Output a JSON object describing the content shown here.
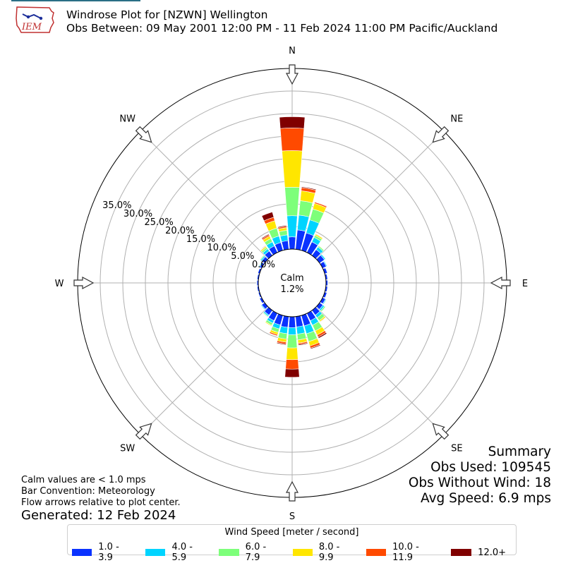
{
  "header": {
    "title_line1": "Windrose Plot for [NZWN] Wellington",
    "title_line2": "Obs Between: 09 May 2001 12:00 PM - 11 Feb 2024 11:00 PM Pacific/Auckland",
    "logo_text": "IEM"
  },
  "summary": {
    "heading": "Summary",
    "obs_used": "Obs Used: 109545",
    "obs_without_wind": "Obs Without Wind: 18",
    "avg_speed": "Avg Speed: 6.9 mps"
  },
  "notes": {
    "calm_note": "Calm values are < 1.0 mps",
    "bar_convention": "Bar Convention: Meteorology",
    "flow_arrows": "Flow arrows relative to plot center.",
    "generated": "Generated: 12 Feb 2024"
  },
  "chart_data": {
    "type": "windrose",
    "calm_label": "Calm",
    "calm_value": "1.2%",
    "radial_ticks": [
      "0.0%",
      "5.0%",
      "10.0%",
      "15.0%",
      "20.0%",
      "25.0%",
      "30.0%",
      "35.0%"
    ],
    "radial_tick_values": [
      0,
      5,
      10,
      15,
      20,
      25,
      30,
      35
    ],
    "rmax": 40,
    "compass_labels": [
      "N",
      "NE",
      "E",
      "SE",
      "S",
      "SW",
      "W",
      "NW"
    ],
    "grid": true,
    "legend": {
      "title": "Wind Speed [meter / second]",
      "placement": "bottom-center",
      "entries": [
        "1.0 - 3.9",
        "4.0 - 5.9",
        "6.0 - 7.9",
        "8.0 - 9.9",
        "10.0 - 11.9",
        "12.0+"
      ],
      "colors": [
        "#0a32ff",
        "#00d4ff",
        "#7dff7a",
        "#ffe600",
        "#ff4a00",
        "#800000"
      ]
    },
    "directions": [
      0,
      10,
      20,
      30,
      40,
      50,
      60,
      70,
      80,
      90,
      100,
      110,
      120,
      130,
      140,
      150,
      160,
      170,
      180,
      190,
      200,
      210,
      220,
      230,
      240,
      250,
      260,
      270,
      280,
      290,
      300,
      310,
      320,
      330,
      340,
      350
    ],
    "series": [
      {
        "name": "1.0 - 3.9",
        "values": [
          2.7,
          4.3,
          4.0,
          2.6,
          1.6,
          1.3,
          0.9,
          0.6,
          0.4,
          0.4,
          0.4,
          0.5,
          0.7,
          0.9,
          1.3,
          1.8,
          2.4,
          2.3,
          2.4,
          2.4,
          2.2,
          1.8,
          1.3,
          0.8,
          0.5,
          0.3,
          0.3,
          0.3,
          0.3,
          0.4,
          0.5,
          0.8,
          1.2,
          1.6,
          1.8,
          1.9
        ]
      },
      {
        "name": "4.0 - 5.9",
        "values": [
          4.7,
          3.3,
          3.0,
          1.1,
          0.7,
          0.3,
          0.2,
          0.1,
          0.1,
          0.1,
          0.1,
          0.1,
          0.2,
          0.4,
          0.7,
          1.1,
          1.8,
          1.6,
          1.6,
          1.4,
          0.9,
          0.6,
          0.3,
          0.2,
          0.1,
          0.1,
          0.1,
          0.1,
          0.1,
          0.1,
          0.2,
          0.3,
          0.6,
          1.0,
          1.5,
          1.3
        ]
      },
      {
        "name": "6.0 - 7.9",
        "values": [
          6.3,
          3.2,
          2.5,
          0.5,
          0.3,
          0.1,
          0.1,
          0.1,
          0.0,
          0.0,
          0.0,
          0.1,
          0.1,
          0.3,
          0.8,
          1.4,
          1.8,
          1.3,
          2.9,
          1.2,
          0.8,
          0.5,
          0.2,
          0.1,
          0.1,
          0.0,
          0.0,
          0.0,
          0.0,
          0.1,
          0.1,
          0.2,
          0.4,
          0.8,
          1.8,
          1.0
        ]
      },
      {
        "name": "8.0 - 9.9",
        "values": [
          8.1,
          2.2,
          1.3,
          0.3,
          0.1,
          0.1,
          0.0,
          0.0,
          0.0,
          0.0,
          0.0,
          0.0,
          0.1,
          0.1,
          0.3,
          1.0,
          1.0,
          0.7,
          2.6,
          0.7,
          0.5,
          0.2,
          0.1,
          0.0,
          0.0,
          0.0,
          0.0,
          0.0,
          0.0,
          0.0,
          0.0,
          0.1,
          0.3,
          0.6,
          1.7,
          0.6
        ]
      },
      {
        "name": "10.0 - 11.9",
        "values": [
          5.0,
          0.7,
          0.3,
          0.1,
          0.0,
          0.0,
          0.0,
          0.0,
          0.0,
          0.0,
          0.0,
          0.0,
          0.0,
          0.0,
          0.1,
          0.5,
          0.5,
          0.3,
          2.1,
          0.4,
          0.3,
          0.1,
          0.0,
          0.0,
          0.0,
          0.0,
          0.0,
          0.0,
          0.0,
          0.0,
          0.0,
          0.0,
          0.1,
          0.3,
          0.8,
          0.3
        ]
      },
      {
        "name": "12.0+",
        "values": [
          2.5,
          0.2,
          0.1,
          0.0,
          0.0,
          0.0,
          0.0,
          0.0,
          0.0,
          0.0,
          0.0,
          0.0,
          0.0,
          0.0,
          0.0,
          0.3,
          0.2,
          0.2,
          1.8,
          0.2,
          0.1,
          0.0,
          0.0,
          0.0,
          0.0,
          0.0,
          0.0,
          0.0,
          0.0,
          0.0,
          0.0,
          0.0,
          0.1,
          0.2,
          1.2,
          0.2
        ]
      }
    ]
  }
}
